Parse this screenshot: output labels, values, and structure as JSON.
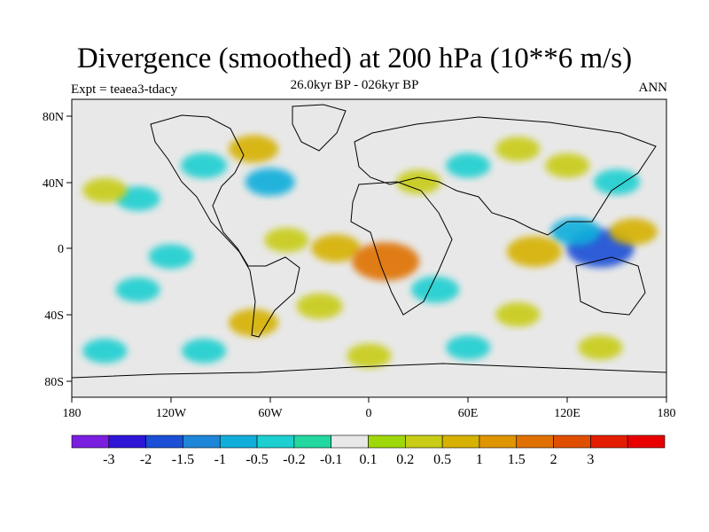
{
  "chart_data": {
    "type": "heatmap",
    "title": "Divergence (smoothed) at 200 hPa (10**6 m/s)",
    "subtitle_left": "Expt = teaea3-tdacy",
    "subtitle_center": "26.0kyr BP - 026kyr BP",
    "subtitle_right": "ANN",
    "x_ticks": [
      "180",
      "120W",
      "60W",
      "0",
      "60E",
      "120E",
      "180"
    ],
    "y_ticks": [
      "80N",
      "40N",
      "0",
      "40S",
      "80S"
    ],
    "xlim": [
      -180,
      180
    ],
    "ylim": [
      -90,
      90
    ],
    "colorbar": {
      "colors": [
        "#7a1fe0",
        "#2d16d6",
        "#1a4fd6",
        "#1e86d8",
        "#11aedb",
        "#1ccfd0",
        "#22d8a0",
        "#e8e8e8",
        "#9fd80a",
        "#c8cc14",
        "#d6b100",
        "#de9500",
        "#e07100",
        "#e04f00",
        "#e31e00",
        "#e80000"
      ],
      "labels": [
        "-3",
        "-2",
        "-1.5",
        "-1",
        "-0.5",
        "-0.2",
        "-0.1",
        "0.1",
        "0.2",
        "0.5",
        "1",
        "1.5",
        "2",
        "3"
      ],
      "levels": [
        -3,
        -2,
        -1.5,
        -1,
        -0.5,
        -0.2,
        -0.1,
        0.1,
        0.2,
        0.5,
        1,
        1.5,
        2,
        3
      ]
    },
    "features": [
      {
        "lon": -20,
        "lat": 0,
        "value": 0.6
      },
      {
        "lon": 10,
        "lat": -8,
        "value": 1.6
      },
      {
        "lon": -50,
        "lat": 5,
        "value": 0.3
      },
      {
        "lon": 140,
        "lat": 0,
        "value": -1.6
      },
      {
        "lon": 125,
        "lat": 10,
        "value": -0.6
      },
      {
        "lon": 100,
        "lat": -2,
        "value": 0.9
      },
      {
        "lon": 160,
        "lat": 10,
        "value": 0.5
      },
      {
        "lon": -70,
        "lat": 60,
        "value": 0.6
      },
      {
        "lon": -100,
        "lat": 50,
        "value": -0.4
      },
      {
        "lon": -60,
        "lat": 40,
        "value": -0.6
      },
      {
        "lon": -140,
        "lat": 30,
        "value": -0.3
      },
      {
        "lon": -160,
        "lat": 35,
        "value": 0.3
      },
      {
        "lon": 30,
        "lat": 40,
        "value": 0.3
      },
      {
        "lon": 60,
        "lat": 50,
        "value": -0.3
      },
      {
        "lon": 90,
        "lat": 60,
        "value": 0.3
      },
      {
        "lon": 120,
        "lat": 50,
        "value": 0.3
      },
      {
        "lon": 150,
        "lat": 40,
        "value": -0.4
      },
      {
        "lon": -30,
        "lat": -35,
        "value": 0.4
      },
      {
        "lon": 40,
        "lat": -25,
        "value": -0.5
      },
      {
        "lon": 90,
        "lat": -40,
        "value": 0.3
      },
      {
        "lon": -140,
        "lat": -25,
        "value": -0.3
      },
      {
        "lon": -120,
        "lat": -5,
        "value": -0.3
      },
      {
        "lon": 0,
        "lat": -65,
        "value": 0.3
      },
      {
        "lon": 60,
        "lat": -60,
        "value": -0.3
      },
      {
        "lon": -100,
        "lat": -62,
        "value": -0.3
      },
      {
        "lon": 140,
        "lat": -60,
        "value": 0.3
      },
      {
        "lon": -160,
        "lat": -62,
        "value": -0.3
      },
      {
        "lon": -70,
        "lat": -45,
        "value": 0.6
      }
    ]
  }
}
